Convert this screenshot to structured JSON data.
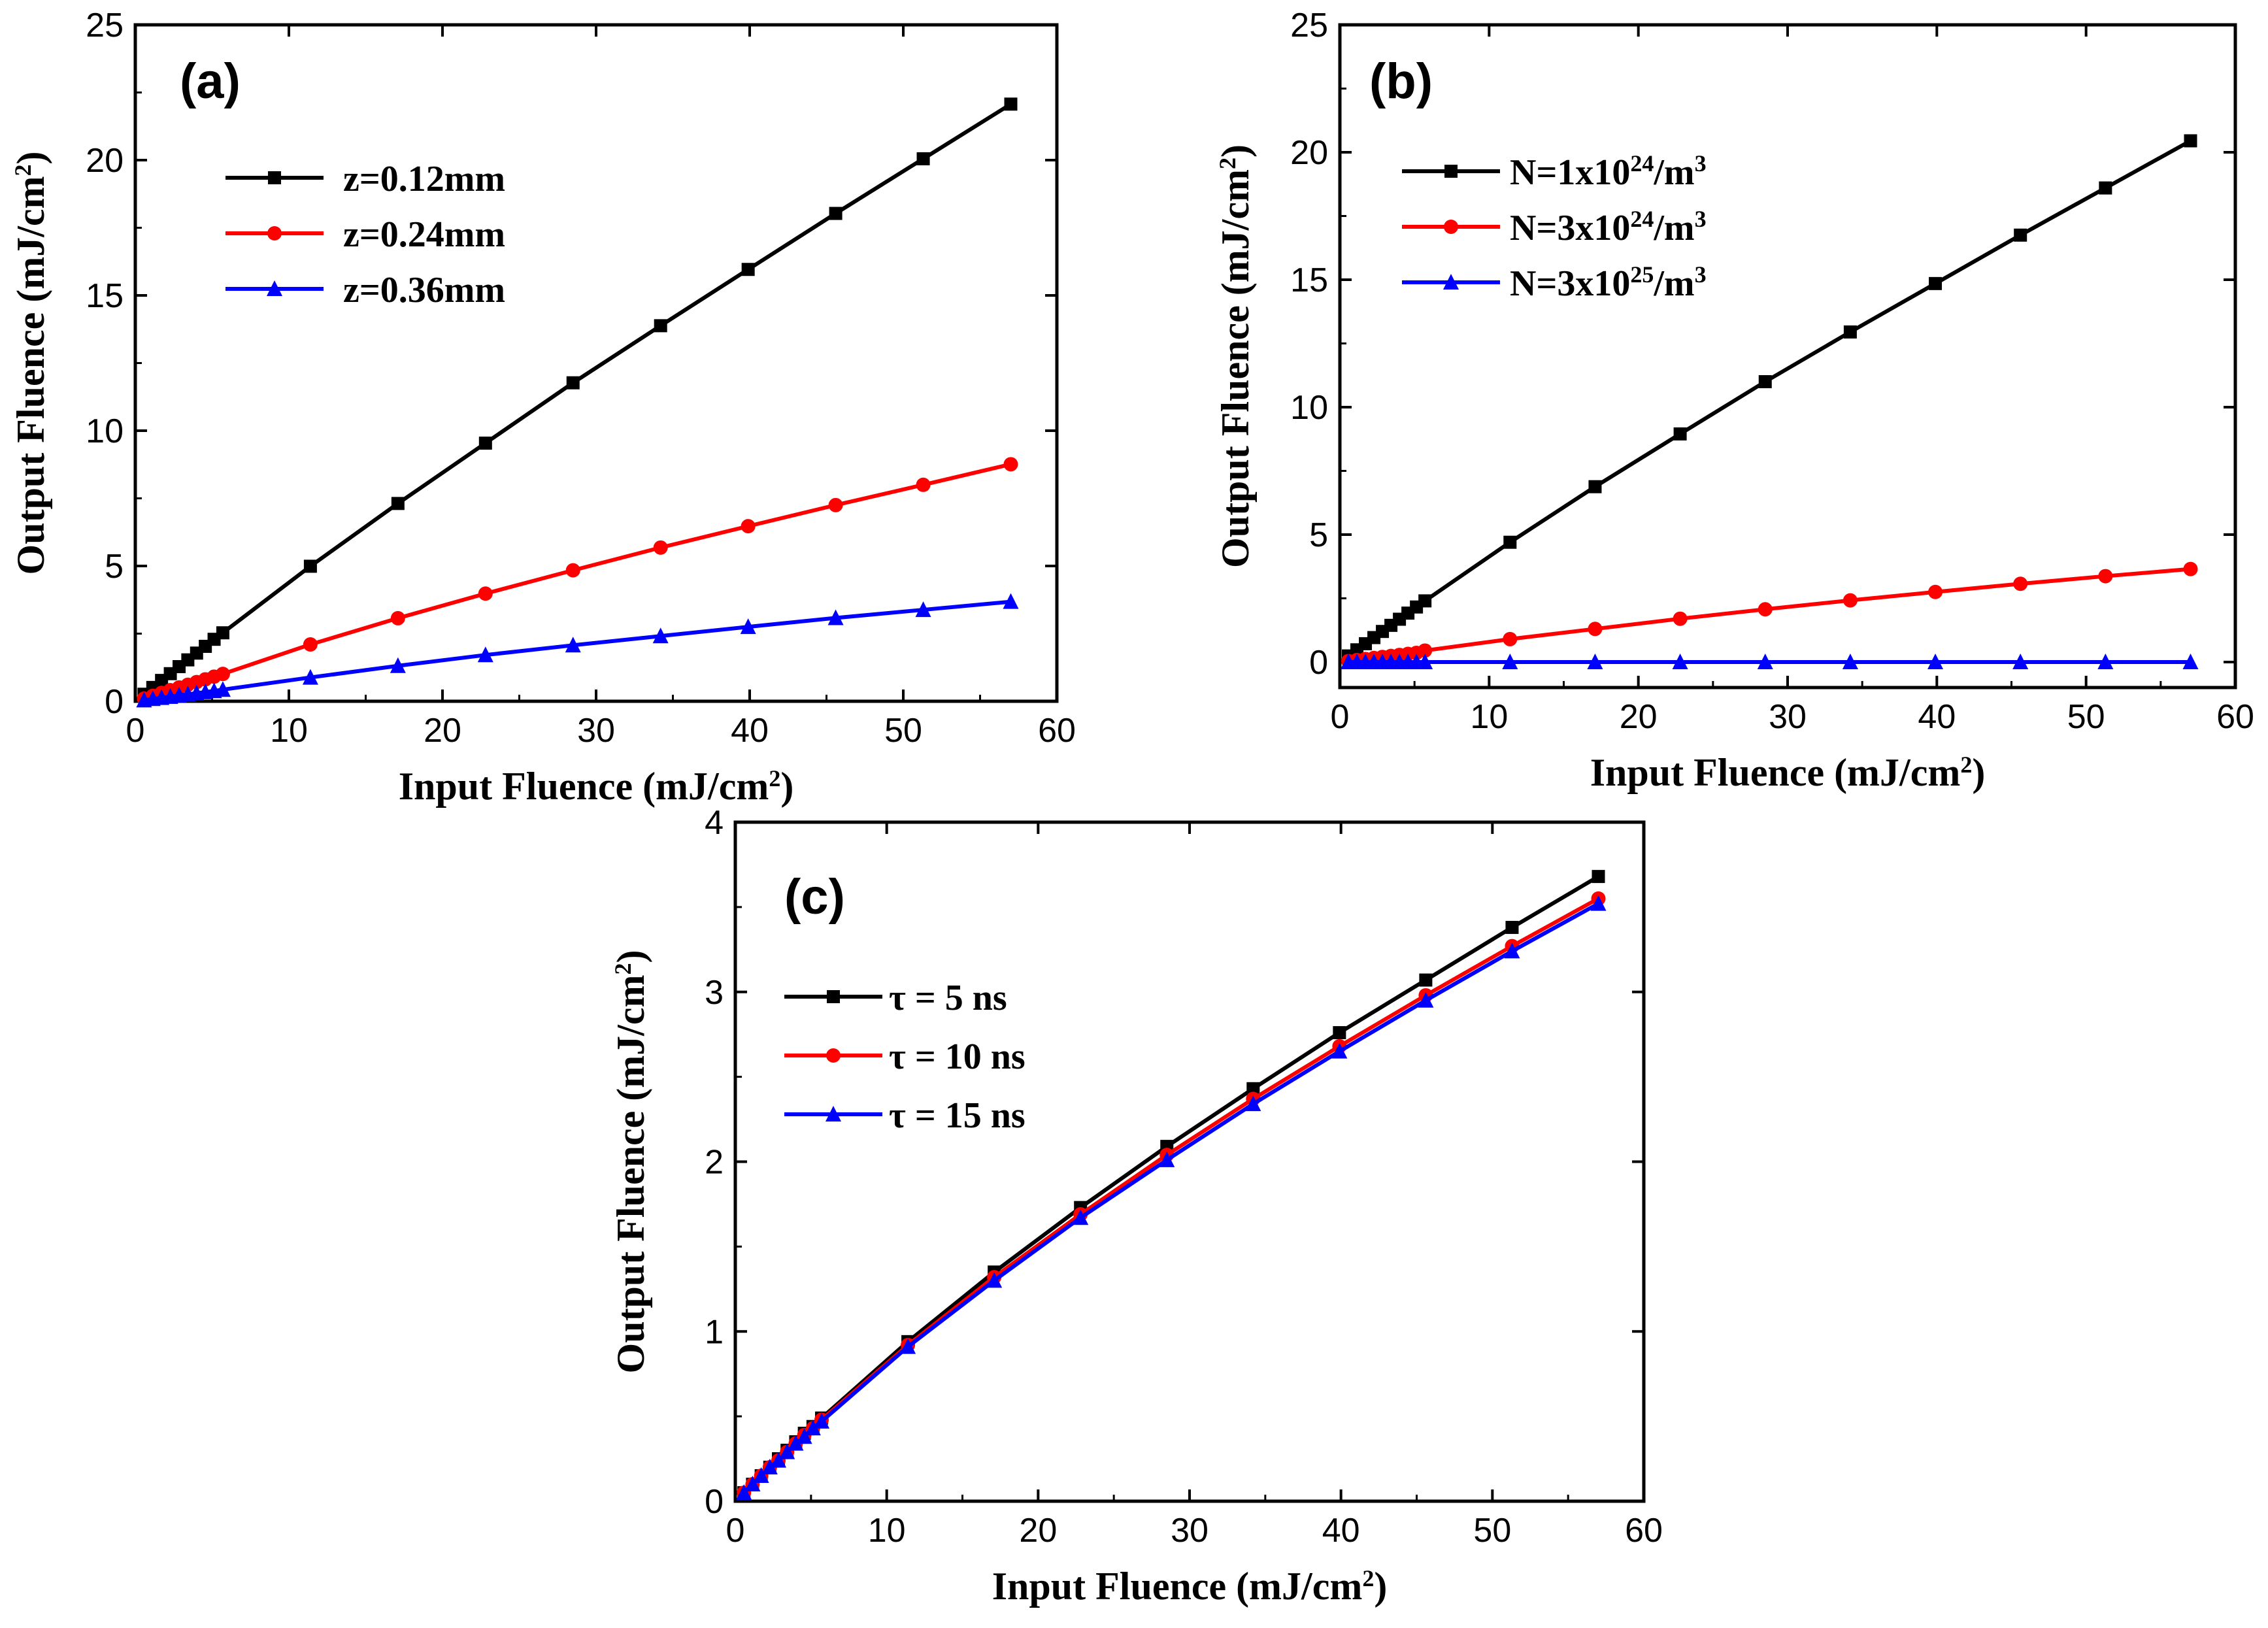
{
  "chart_data": [
    {
      "id": "a",
      "type": "line",
      "panel_label": "(a)",
      "xlabel": "Input Fluence (mJ/cm",
      "xlabel_sup": "2",
      "xlabel_end": ")",
      "ylabel": "Output Fluence (mJ/cm",
      "ylabel_sup": "2",
      "ylabel_end": ")",
      "xlim": [
        0,
        60
      ],
      "ylim": [
        0,
        25
      ],
      "xticks": [
        0,
        10,
        20,
        30,
        40,
        50,
        60
      ],
      "yticks": [
        0,
        5,
        10,
        15,
        20,
        25
      ],
      "x": [
        0.57,
        1.14,
        1.71,
        2.28,
        2.85,
        3.42,
        3.99,
        4.56,
        5.13,
        5.7,
        11.4,
        17.1,
        22.8,
        28.5,
        34.2,
        39.9,
        45.6,
        51.3,
        57.0
      ],
      "series": [
        {
          "name": "z=0.12mm",
          "color": "#000000",
          "marker": "square",
          "values": [
            0.26,
            0.51,
            0.77,
            1.02,
            1.28,
            1.53,
            1.78,
            2.03,
            2.29,
            2.53,
            4.99,
            7.31,
            9.54,
            11.77,
            13.88,
            15.96,
            18.03,
            20.05,
            22.07
          ]
        },
        {
          "name": "z=0.24mm",
          "color": "#ff0000",
          "marker": "circle",
          "values": [
            0.1,
            0.2,
            0.31,
            0.41,
            0.51,
            0.61,
            0.71,
            0.81,
            0.91,
            1.01,
            2.1,
            3.07,
            3.98,
            4.84,
            5.68,
            6.47,
            7.25,
            8.0,
            8.76
          ]
        },
        {
          "name": "z=0.36mm",
          "color": "#0000ff",
          "marker": "triangle",
          "values": [
            0.04,
            0.09,
            0.13,
            0.17,
            0.22,
            0.26,
            0.3,
            0.34,
            0.38,
            0.43,
            0.88,
            1.31,
            1.71,
            2.07,
            2.41,
            2.75,
            3.08,
            3.38,
            3.68
          ]
        }
      ],
      "legend": [
        "z=0.12mm",
        "z=0.24mm",
        "z=0.36mm"
      ]
    },
    {
      "id": "b",
      "type": "line",
      "panel_label": "(b)",
      "xlabel": "Input Fluence (mJ/cm",
      "xlabel_sup": "2",
      "xlabel_end": ")",
      "ylabel": "Output Fluence (mJ/cm",
      "ylabel_sup": "2",
      "ylabel_end": ")",
      "xlim": [
        0,
        60
      ],
      "ylim": [
        -1,
        25
      ],
      "xticks": [
        0,
        10,
        20,
        30,
        40,
        50,
        60
      ],
      "yticks": [
        0,
        5,
        10,
        15,
        20,
        25
      ],
      "x": [
        0.57,
        1.14,
        1.71,
        2.28,
        2.85,
        3.42,
        3.99,
        4.56,
        5.13,
        5.7,
        11.4,
        17.1,
        22.8,
        28.5,
        34.2,
        39.9,
        45.6,
        51.3,
        57.0
      ],
      "series": [
        {
          "name_parts": [
            "N=1x10",
            "24",
            "/m",
            "3"
          ],
          "color": "#000000",
          "marker": "square",
          "values": [
            0.24,
            0.48,
            0.72,
            0.96,
            1.2,
            1.44,
            1.68,
            1.92,
            2.16,
            2.4,
            4.7,
            6.88,
            8.95,
            11.0,
            12.95,
            14.85,
            16.75,
            18.6,
            20.45
          ]
        },
        {
          "name_parts": [
            "N=3x10",
            "24",
            "/m",
            "3"
          ],
          "color": "#ff0000",
          "marker": "circle",
          "values": [
            0.04,
            0.08,
            0.12,
            0.16,
            0.2,
            0.24,
            0.28,
            0.32,
            0.36,
            0.45,
            0.9,
            1.3,
            1.7,
            2.07,
            2.42,
            2.75,
            3.07,
            3.37,
            3.65
          ]
        },
        {
          "name_parts": [
            "N=3x10",
            "25",
            "/m",
            "3"
          ],
          "color": "#0000ff",
          "marker": "triangle",
          "values": [
            0,
            0,
            0,
            0,
            0,
            0,
            0,
            0,
            0,
            0,
            0,
            0,
            0,
            0,
            0,
            0,
            0,
            0,
            0
          ]
        }
      ]
    },
    {
      "id": "c",
      "type": "line",
      "panel_label": "(c)",
      "xlabel": "Input Fluence (mJ/cm",
      "xlabel_sup": "2",
      "xlabel_end": ")",
      "ylabel": "Output Fluence (mJ/cm",
      "ylabel_sup": "2",
      "ylabel_end": ")",
      "xlim": [
        0,
        60
      ],
      "ylim": [
        0,
        4
      ],
      "xticks": [
        0,
        10,
        20,
        30,
        40,
        50,
        60
      ],
      "yticks": [
        0,
        1,
        2,
        3,
        4
      ],
      "x": [
        0.57,
        1.14,
        1.71,
        2.28,
        2.85,
        3.42,
        3.99,
        4.56,
        5.13,
        5.7,
        11.4,
        17.1,
        22.8,
        28.5,
        34.2,
        39.9,
        45.6,
        51.3,
        57.0
      ],
      "series": [
        {
          "name": "τ = 5 ns",
          "color": "#000000",
          "marker": "square",
          "values": [
            0.05,
            0.1,
            0.15,
            0.2,
            0.25,
            0.3,
            0.35,
            0.4,
            0.44,
            0.49,
            0.94,
            1.35,
            1.73,
            2.09,
            2.43,
            2.76,
            3.07,
            3.38,
            3.68
          ]
        },
        {
          "name": "τ = 10 ns",
          "color": "#ff0000",
          "marker": "circle",
          "values": [
            0.05,
            0.1,
            0.15,
            0.2,
            0.24,
            0.29,
            0.34,
            0.39,
            0.43,
            0.48,
            0.92,
            1.32,
            1.69,
            2.04,
            2.37,
            2.68,
            2.98,
            3.27,
            3.55
          ]
        },
        {
          "name": "τ = 15 ns",
          "color": "#0000ff",
          "marker": "triangle",
          "values": [
            0.05,
            0.1,
            0.15,
            0.2,
            0.24,
            0.29,
            0.34,
            0.38,
            0.43,
            0.47,
            0.91,
            1.3,
            1.67,
            2.01,
            2.34,
            2.65,
            2.95,
            3.24,
            3.52
          ]
        }
      ],
      "legend": [
        "τ = 5 ns",
        "τ = 10 ns",
        "τ = 15 ns"
      ]
    }
  ]
}
